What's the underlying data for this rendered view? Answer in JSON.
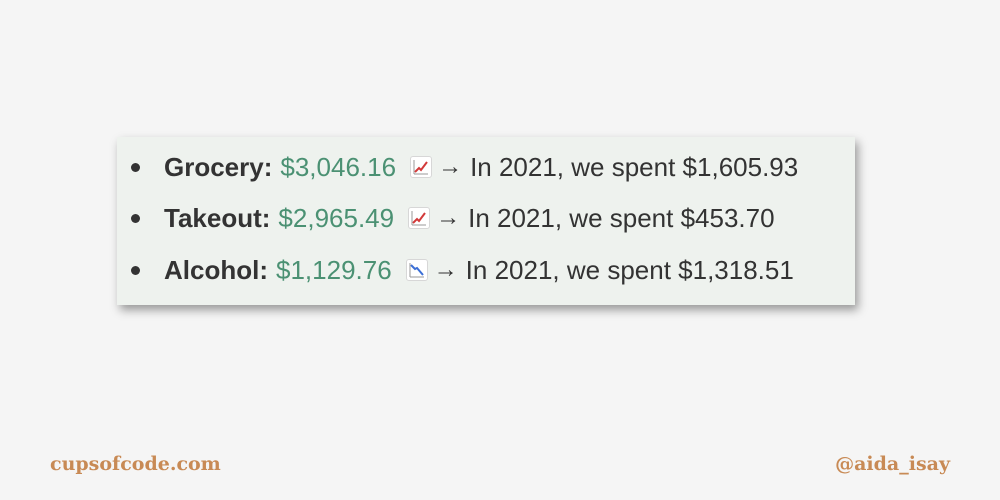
{
  "items": [
    {
      "label": "Grocery:",
      "amount": "$3,046.16",
      "trend_icon": "chart-increasing-icon",
      "arrow": "→",
      "comparison": "In 2021, we spent $1,605.93"
    },
    {
      "label": "Takeout:",
      "amount": "$2,965.49",
      "trend_icon": "chart-increasing-icon",
      "arrow": "→",
      "comparison": "In 2021, we spent $453.70"
    },
    {
      "label": "Alcohol:",
      "amount": "$1,129.76",
      "trend_icon": "chart-decreasing-icon",
      "arrow": "→",
      "comparison": "In 2021, we spent $1,318.51"
    }
  ],
  "footer": {
    "site": "cupsofcode.com",
    "handle": "@aida_isay"
  },
  "colors": {
    "background": "#f5f5f5",
    "card": "#eef2ee",
    "amount": "#4b9173",
    "increase": "#d23a3a",
    "decrease": "#3b6fd6",
    "footer": "#c88a55"
  }
}
